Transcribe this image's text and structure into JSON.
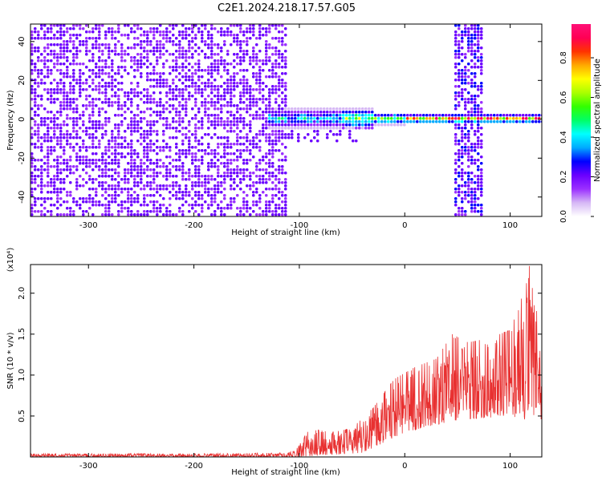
{
  "title": "C2E1.2024.218.17.57.G05",
  "chart_data": [
    {
      "type": "heatmap",
      "xlabel": "Height of straight line (km)",
      "ylabel": "Frequency (Hz)",
      "xlim": [
        -355,
        130
      ],
      "ylim": [
        -50,
        49
      ],
      "x_ticks": [
        -300,
        -200,
        -100,
        0,
        100
      ],
      "y_ticks": [
        -40,
        -20,
        0,
        20,
        40
      ],
      "colorbar": {
        "label": "Normalized spectral amplitude",
        "range": [
          0.0,
          0.97
        ],
        "ticks": [
          "0.0",
          "0.2",
          "0.4",
          "0.6",
          "0.8"
        ],
        "colors": [
          "#ffffff",
          "#d6b8f5",
          "#9b30ff",
          "#6a00ff",
          "#0000ff",
          "#00aaff",
          "#00ffff",
          "#00ff66",
          "#33ff00",
          "#aaff00",
          "#ffff00",
          "#ffaa00",
          "#ff3300",
          "#ff0055",
          "#ff1177"
        ]
      },
      "features": [
        {
          "name": "broadband noise",
          "x_range": [
            -355,
            -112
          ],
          "level": 0.18
        },
        {
          "name": "carrier line",
          "x_range": [
            -130,
            130
          ],
          "y": 1,
          "peak_level": 0.85
        },
        {
          "name": "noise column",
          "x_range": [
            46,
            72
          ],
          "level": 0.2
        }
      ]
    },
    {
      "type": "line",
      "xlabel": "Height of straight line (km)",
      "ylabel": "SNR (10 * v/v)",
      "y_multiplier": "(x10⁴)",
      "xlim": [
        -355,
        130
      ],
      "ylim": [
        0,
        2.35
      ],
      "x_ticks": [
        -300,
        -200,
        -100,
        0,
        100
      ],
      "y_ticks": [
        "0.5",
        "1.0",
        "1.5",
        "2.0"
      ],
      "series_color": "#e83030",
      "envelope": [
        {
          "x": -355,
          "y": 0.04
        },
        {
          "x": -200,
          "y": 0.04
        },
        {
          "x": -110,
          "y": 0.05
        },
        {
          "x": -100,
          "y": 0.15
        },
        {
          "x": -90,
          "y": 0.35
        },
        {
          "x": -70,
          "y": 0.3
        },
        {
          "x": -50,
          "y": 0.35
        },
        {
          "x": -30,
          "y": 0.6
        },
        {
          "x": -10,
          "y": 0.95
        },
        {
          "x": 10,
          "y": 1.1
        },
        {
          "x": 30,
          "y": 1.2
        },
        {
          "x": 45,
          "y": 1.5
        },
        {
          "x": 60,
          "y": 1.4
        },
        {
          "x": 80,
          "y": 1.45
        },
        {
          "x": 100,
          "y": 1.55
        },
        {
          "x": 110,
          "y": 1.9
        },
        {
          "x": 118,
          "y": 2.35
        },
        {
          "x": 125,
          "y": 1.8
        },
        {
          "x": 130,
          "y": 1.2
        }
      ],
      "floor": [
        {
          "x": -355,
          "y": 0.0
        },
        {
          "x": -100,
          "y": 0.0
        },
        {
          "x": -40,
          "y": 0.05
        },
        {
          "x": 0,
          "y": 0.3
        },
        {
          "x": 50,
          "y": 0.45
        },
        {
          "x": 100,
          "y": 0.5
        },
        {
          "x": 130,
          "y": 0.4
        }
      ]
    }
  ]
}
